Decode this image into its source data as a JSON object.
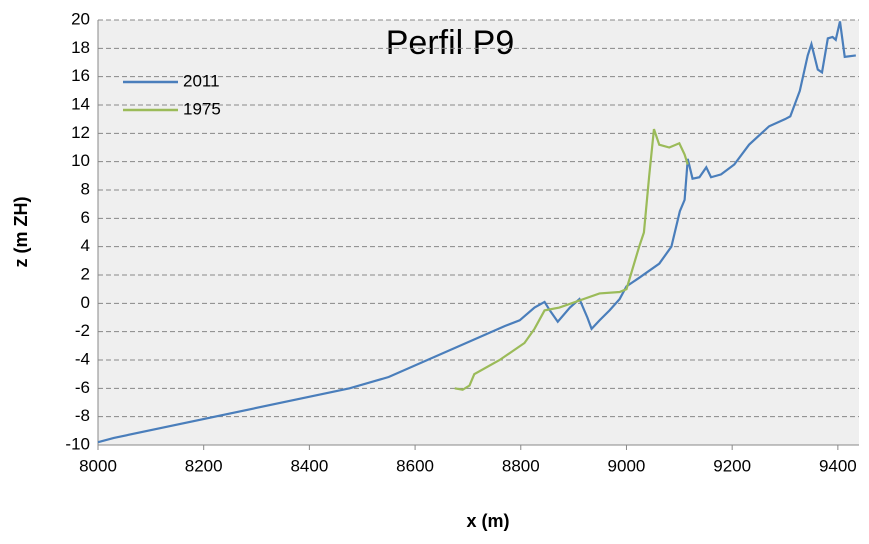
{
  "chart_data": {
    "type": "line",
    "title": "Perfil P9",
    "x_label": "x (m)",
    "y_label": "z (m ZH)",
    "xlim": [
      8000,
      9440
    ],
    "xticks": [
      8000,
      8200,
      8400,
      8600,
      8800,
      9000,
      9200,
      9400
    ],
    "ylim": [
      -10,
      20
    ],
    "yticks": [
      -10,
      -8,
      -6,
      -4,
      -2,
      0,
      2,
      4,
      6,
      8,
      10,
      12,
      14,
      16,
      18,
      20
    ],
    "grid": true,
    "legend": "upper left",
    "series": [
      {
        "name": "2011",
        "color": "#4a7ebb",
        "x": [
          8000,
          8030,
          8476,
          8550,
          8770,
          8798,
          8826,
          8845,
          8855,
          8870,
          8893,
          8911,
          8926,
          8934,
          8949,
          8968,
          8987,
          9000,
          9024,
          9062,
          9085,
          9101,
          9110,
          9116,
          9125,
          9138,
          9151,
          9160,
          9179,
          9204,
          9232,
          9270,
          9300,
          9310,
          9328,
          9343,
          9350,
          9362,
          9370,
          9381,
          9390,
          9396,
          9404,
          9413,
          9434
        ],
        "values": [
          -9.8,
          -9.5,
          -6.0,
          -5.2,
          -1.6,
          -1.2,
          -0.3,
          0.1,
          -0.5,
          -1.3,
          -0.3,
          0.3,
          -1.0,
          -1.8,
          -1.2,
          -0.5,
          0.3,
          1.2,
          1.8,
          2.8,
          4.0,
          6.5,
          7.3,
          10.2,
          8.8,
          8.9,
          9.6,
          8.9,
          9.1,
          9.8,
          11.2,
          12.5,
          13.0,
          13.2,
          15.0,
          17.5,
          18.3,
          16.5,
          16.3,
          18.7,
          18.8,
          18.6,
          19.9,
          17.4,
          17.5
        ]
      },
      {
        "name": "1975",
        "color": "#9bbb59",
        "x": [
          8675,
          8690,
          8703,
          8712,
          8760,
          8807,
          8826,
          8845,
          8873,
          8911,
          8949,
          8987,
          9000,
          9024,
          9033,
          9043,
          9052,
          9062,
          9081,
          9100,
          9110,
          9116
        ],
        "values": [
          -6.0,
          -6.1,
          -5.8,
          -5.0,
          -4.0,
          -2.8,
          -1.8,
          -0.5,
          -0.3,
          0.2,
          0.7,
          0.8,
          1.0,
          4.0,
          5.0,
          9.0,
          12.3,
          11.2,
          11.0,
          11.3,
          10.5,
          9.8
        ]
      }
    ]
  }
}
